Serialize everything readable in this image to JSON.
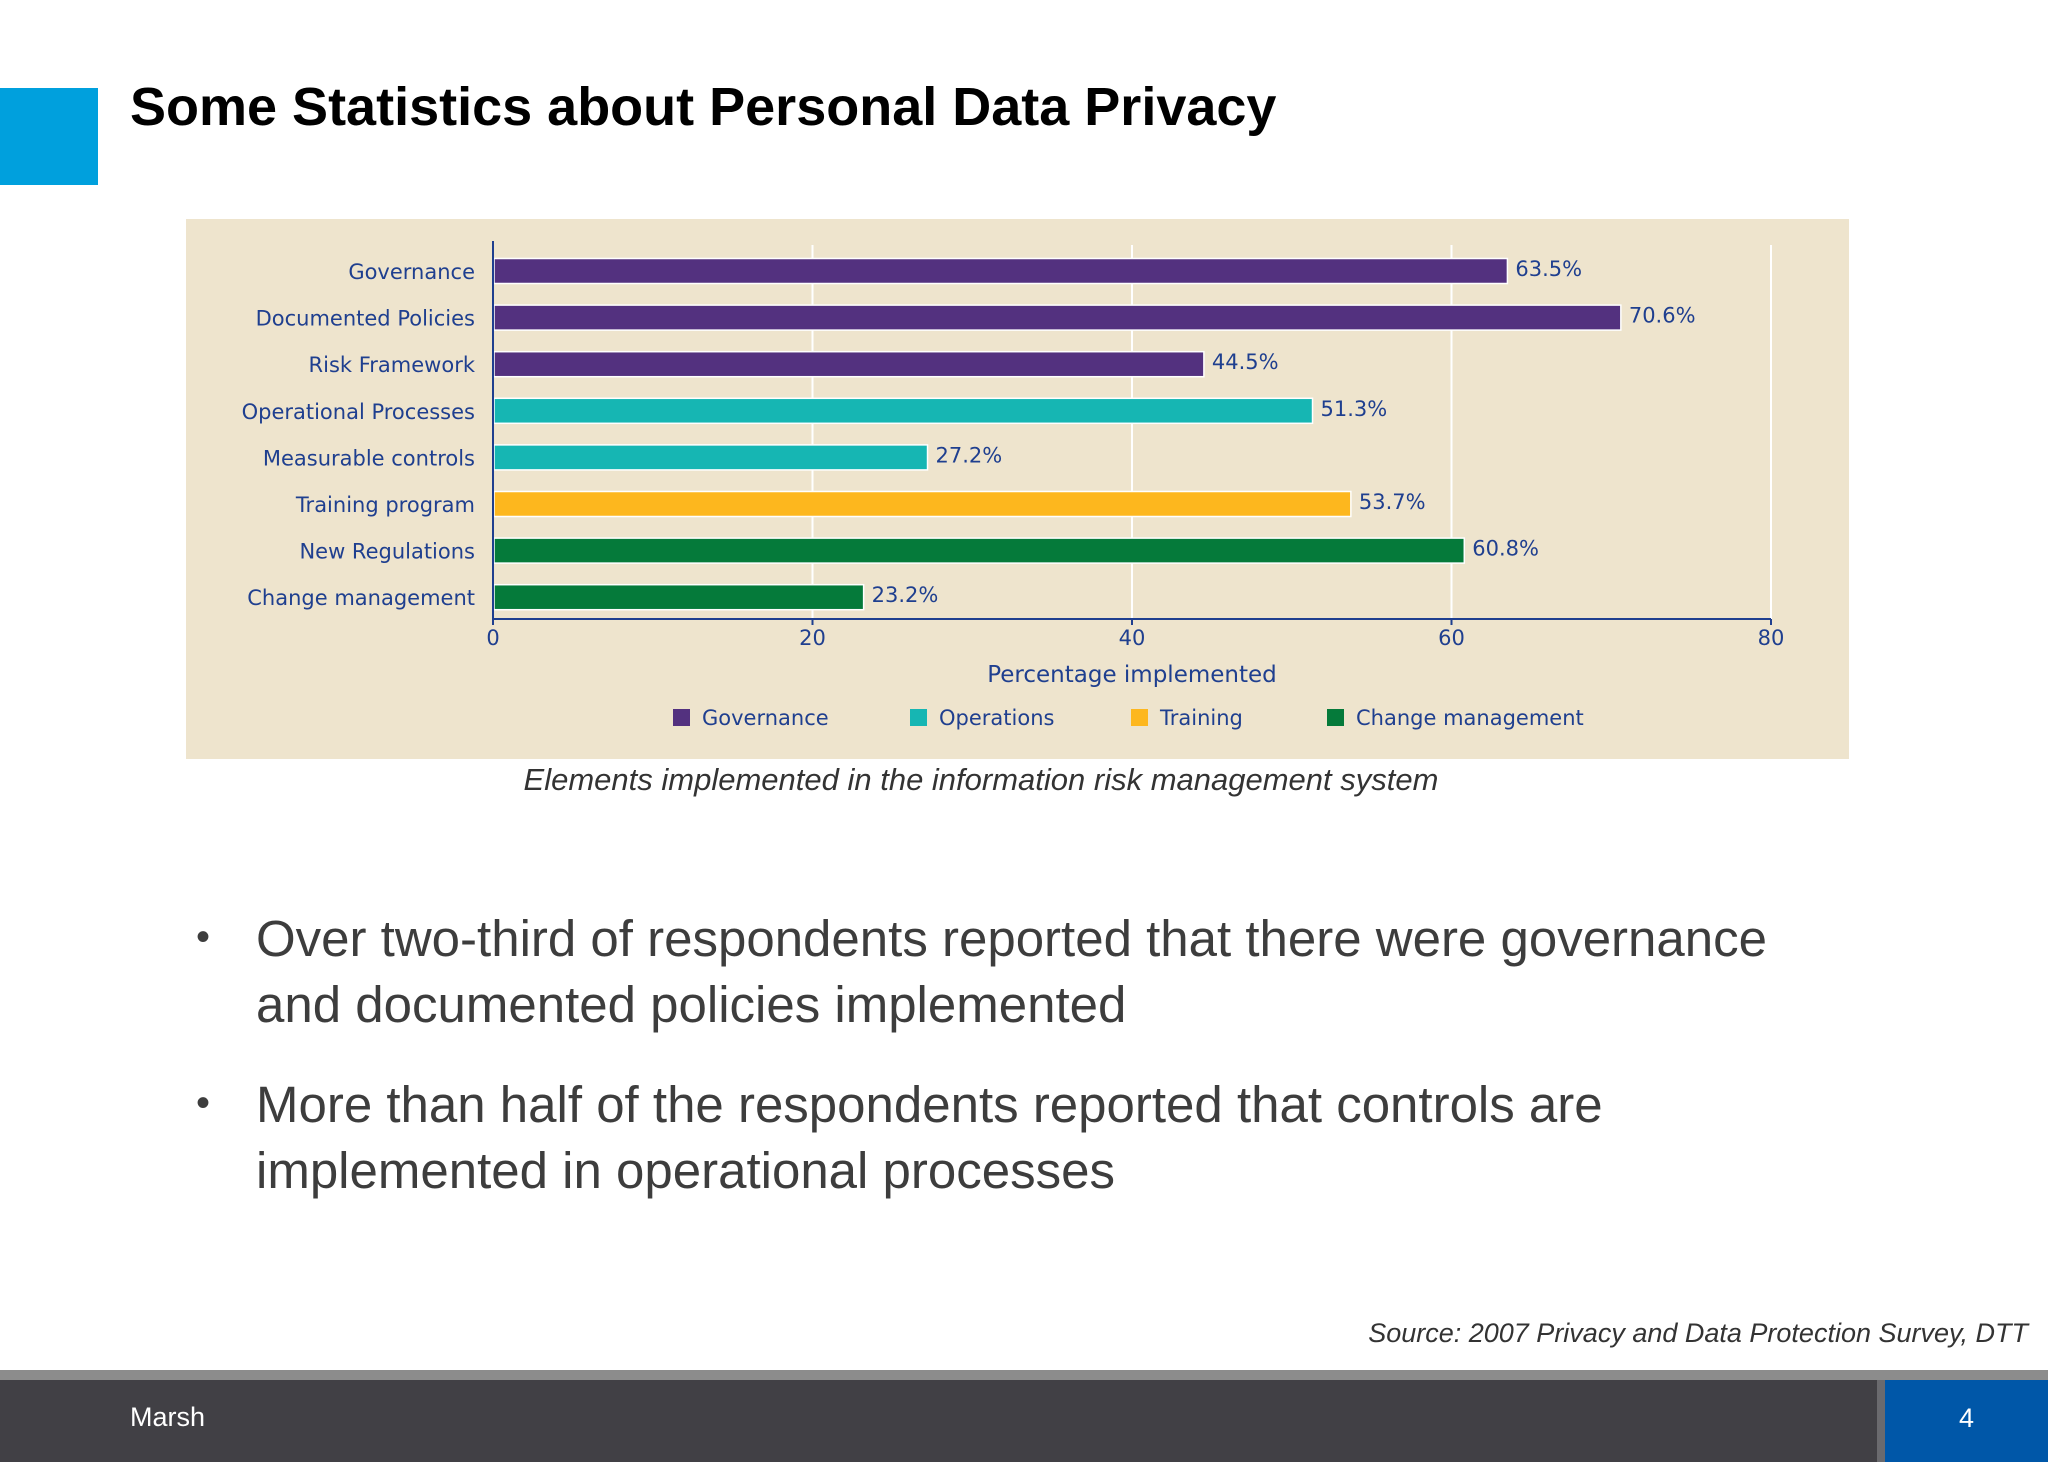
{
  "slide": {
    "title": "Some Statistics about Personal Data Privacy",
    "caption": "Elements implemented in the information risk management system",
    "bullets": [
      "Over two-third of respondents reported that there were governance and documented policies implemented",
      "More than half of the respondents reported that controls are implemented in operational processes"
    ],
    "source": "Source: 2007 Privacy and Data Protection Survey, DTT",
    "footer": {
      "brand": "Marsh",
      "page": "4"
    },
    "accent_color": "#00a0dd"
  },
  "chart_data": {
    "type": "bar",
    "orientation": "horizontal",
    "categories": [
      "Governance",
      "Documented Policies",
      "Risk Framework",
      "Operational Processes",
      "Measurable controls",
      "Training program",
      "New Regulations",
      "Change management"
    ],
    "values": [
      63.5,
      70.6,
      44.5,
      51.3,
      27.2,
      53.7,
      60.8,
      23.2
    ],
    "value_labels": [
      "63.5%",
      "70.6%",
      "44.5%",
      "51.3%",
      "27.2%",
      "53.7%",
      "60.8%",
      "23.2%"
    ],
    "groups": [
      "Governance",
      "Governance",
      "Governance",
      "Operations",
      "Operations",
      "Training",
      "Change management",
      "Change management"
    ],
    "legend": [
      {
        "name": "Governance",
        "color": "#53317f"
      },
      {
        "name": "Operations",
        "color": "#16b6b3"
      },
      {
        "name": "Training",
        "color": "#fdb71e"
      },
      {
        "name": "Change management",
        "color": "#057a3a"
      }
    ],
    "legend_position": "bottom",
    "xlabel": "Percentage implemented",
    "ylabel": "",
    "xlim": [
      0,
      80
    ],
    "xticks": [
      0,
      20,
      40,
      60,
      80
    ],
    "grid": true
  }
}
